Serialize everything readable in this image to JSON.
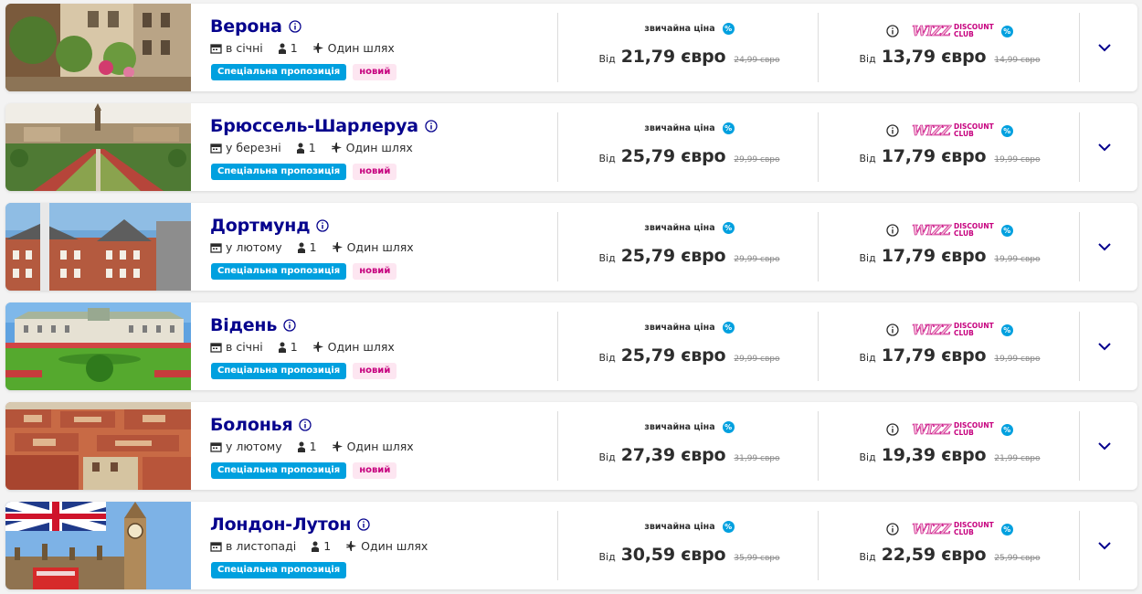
{
  "labels": {
    "regular_price": "звичайна ціна",
    "from": "Від",
    "special_offer": "Спеціальна пропозиція",
    "new": "новий",
    "percent": "%",
    "wizz": "WIZZ",
    "discount": "DISCOUNT",
    "club": "CLUB"
  },
  "colors": {
    "primary_navy": "#06038d",
    "accent_blue": "#00a0df",
    "wizz_magenta": "#c6007e",
    "badge_new_bg": "#fde6f1"
  },
  "offers": [
    {
      "city": "Верона",
      "month": "в січні",
      "passengers": "1",
      "trip": "Один шлях",
      "regular_price": "21,79 євро",
      "regular_old": "24,99 євро",
      "club_price": "13,79 євро",
      "club_old": "14,99 євро",
      "is_new": true,
      "image": "verona-street-photo"
    },
    {
      "city": "Брюссель-Шарлеруа",
      "month": "у березні",
      "passengers": "1",
      "trip": "Один шлях",
      "regular_price": "25,79 євро",
      "regular_old": "29,99 євро",
      "club_price": "17,79 євро",
      "club_old": "19,99 євро",
      "is_new": true,
      "image": "brussels-garden-photo"
    },
    {
      "city": "Дортмунд",
      "month": "у лютому",
      "passengers": "1",
      "trip": "Один шлях",
      "regular_price": "25,79 євро",
      "regular_old": "29,99 євро",
      "club_price": "17,79 євро",
      "club_old": "19,99 євро",
      "is_new": true,
      "image": "dortmund-building-photo"
    },
    {
      "city": "Відень",
      "month": "в січні",
      "passengers": "1",
      "trip": "Один шлях",
      "regular_price": "25,79 євро",
      "regular_old": "29,99 євро",
      "club_price": "17,79 євро",
      "club_old": "19,99 євро",
      "is_new": true,
      "image": "vienna-belvedere-photo"
    },
    {
      "city": "Болонья",
      "month": "у лютому",
      "passengers": "1",
      "trip": "Один шлях",
      "regular_price": "27,39 євро",
      "regular_old": "31,99 євро",
      "club_price": "19,39 євро",
      "club_old": "21,99 євро",
      "is_new": true,
      "image": "bologna-rooftops-photo"
    },
    {
      "city": "Лондон-Лутон",
      "month": "в листопаді",
      "passengers": "1",
      "trip": "Один шлях",
      "regular_price": "30,59 євро",
      "regular_old": "35,99 євро",
      "club_price": "22,59 євро",
      "club_old": "25,99 євро",
      "is_new": false,
      "image": "london-big-ben-photo"
    }
  ]
}
